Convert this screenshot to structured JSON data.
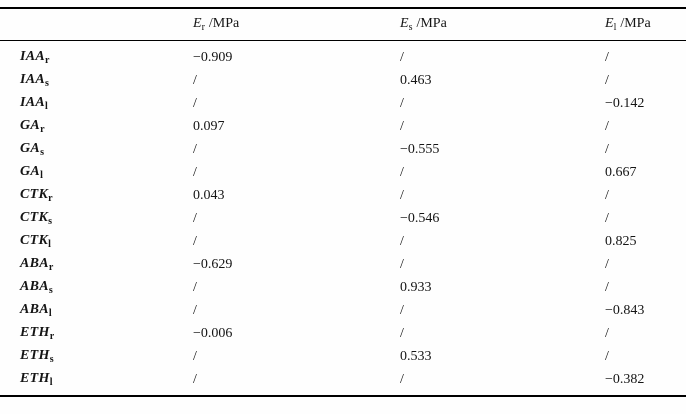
{
  "table": {
    "header": {
      "row_label_column": "",
      "columns": [
        {
          "base": "E",
          "sub": "r",
          "unit": "/MPa"
        },
        {
          "base": "E",
          "sub": "s",
          "unit": "/MPa"
        },
        {
          "base": "E",
          "sub": "l",
          "unit": "/MPa"
        }
      ]
    },
    "placeholder_symbol": "/",
    "rows": [
      {
        "base": "IAA",
        "sub": "r",
        "values": [
          "−0.909",
          "/",
          "/"
        ]
      },
      {
        "base": "IAA",
        "sub": "s",
        "values": [
          "/",
          "0.463",
          "/"
        ]
      },
      {
        "base": "IAA",
        "sub": "l",
        "values": [
          "/",
          "/",
          "−0.142"
        ]
      },
      {
        "base": "GA",
        "sub": "r",
        "values": [
          "0.097",
          "/",
          "/"
        ]
      },
      {
        "base": "GA",
        "sub": "s",
        "values": [
          "/",
          "−0.555",
          "/"
        ]
      },
      {
        "base": "GA",
        "sub": "l",
        "values": [
          "/",
          "/",
          "0.667"
        ]
      },
      {
        "base": "CTK",
        "sub": "r",
        "values": [
          "0.043",
          "/",
          "/"
        ]
      },
      {
        "base": "CTK",
        "sub": "s",
        "values": [
          "/",
          "−0.546",
          "/"
        ]
      },
      {
        "base": "CTK",
        "sub": "l",
        "values": [
          "/",
          "/",
          "0.825"
        ]
      },
      {
        "base": "ABA",
        "sub": "r",
        "values": [
          "−0.629",
          "/",
          "/"
        ]
      },
      {
        "base": "ABA",
        "sub": "s",
        "values": [
          "/",
          "0.933",
          "/"
        ]
      },
      {
        "base": "ABA",
        "sub": "l",
        "values": [
          "/",
          "/",
          "−0.843"
        ]
      },
      {
        "base": "ETH",
        "sub": "r",
        "values": [
          "−0.006",
          "/",
          "/"
        ]
      },
      {
        "base": "ETH",
        "sub": "s",
        "values": [
          "/",
          "0.533",
          "/"
        ]
      },
      {
        "base": "ETH",
        "sub": "l",
        "values": [
          "/",
          "/",
          "−0.382"
        ]
      }
    ],
    "colors": {
      "text": "#151515",
      "rule": "#000000",
      "background": "#fefefe"
    }
  }
}
